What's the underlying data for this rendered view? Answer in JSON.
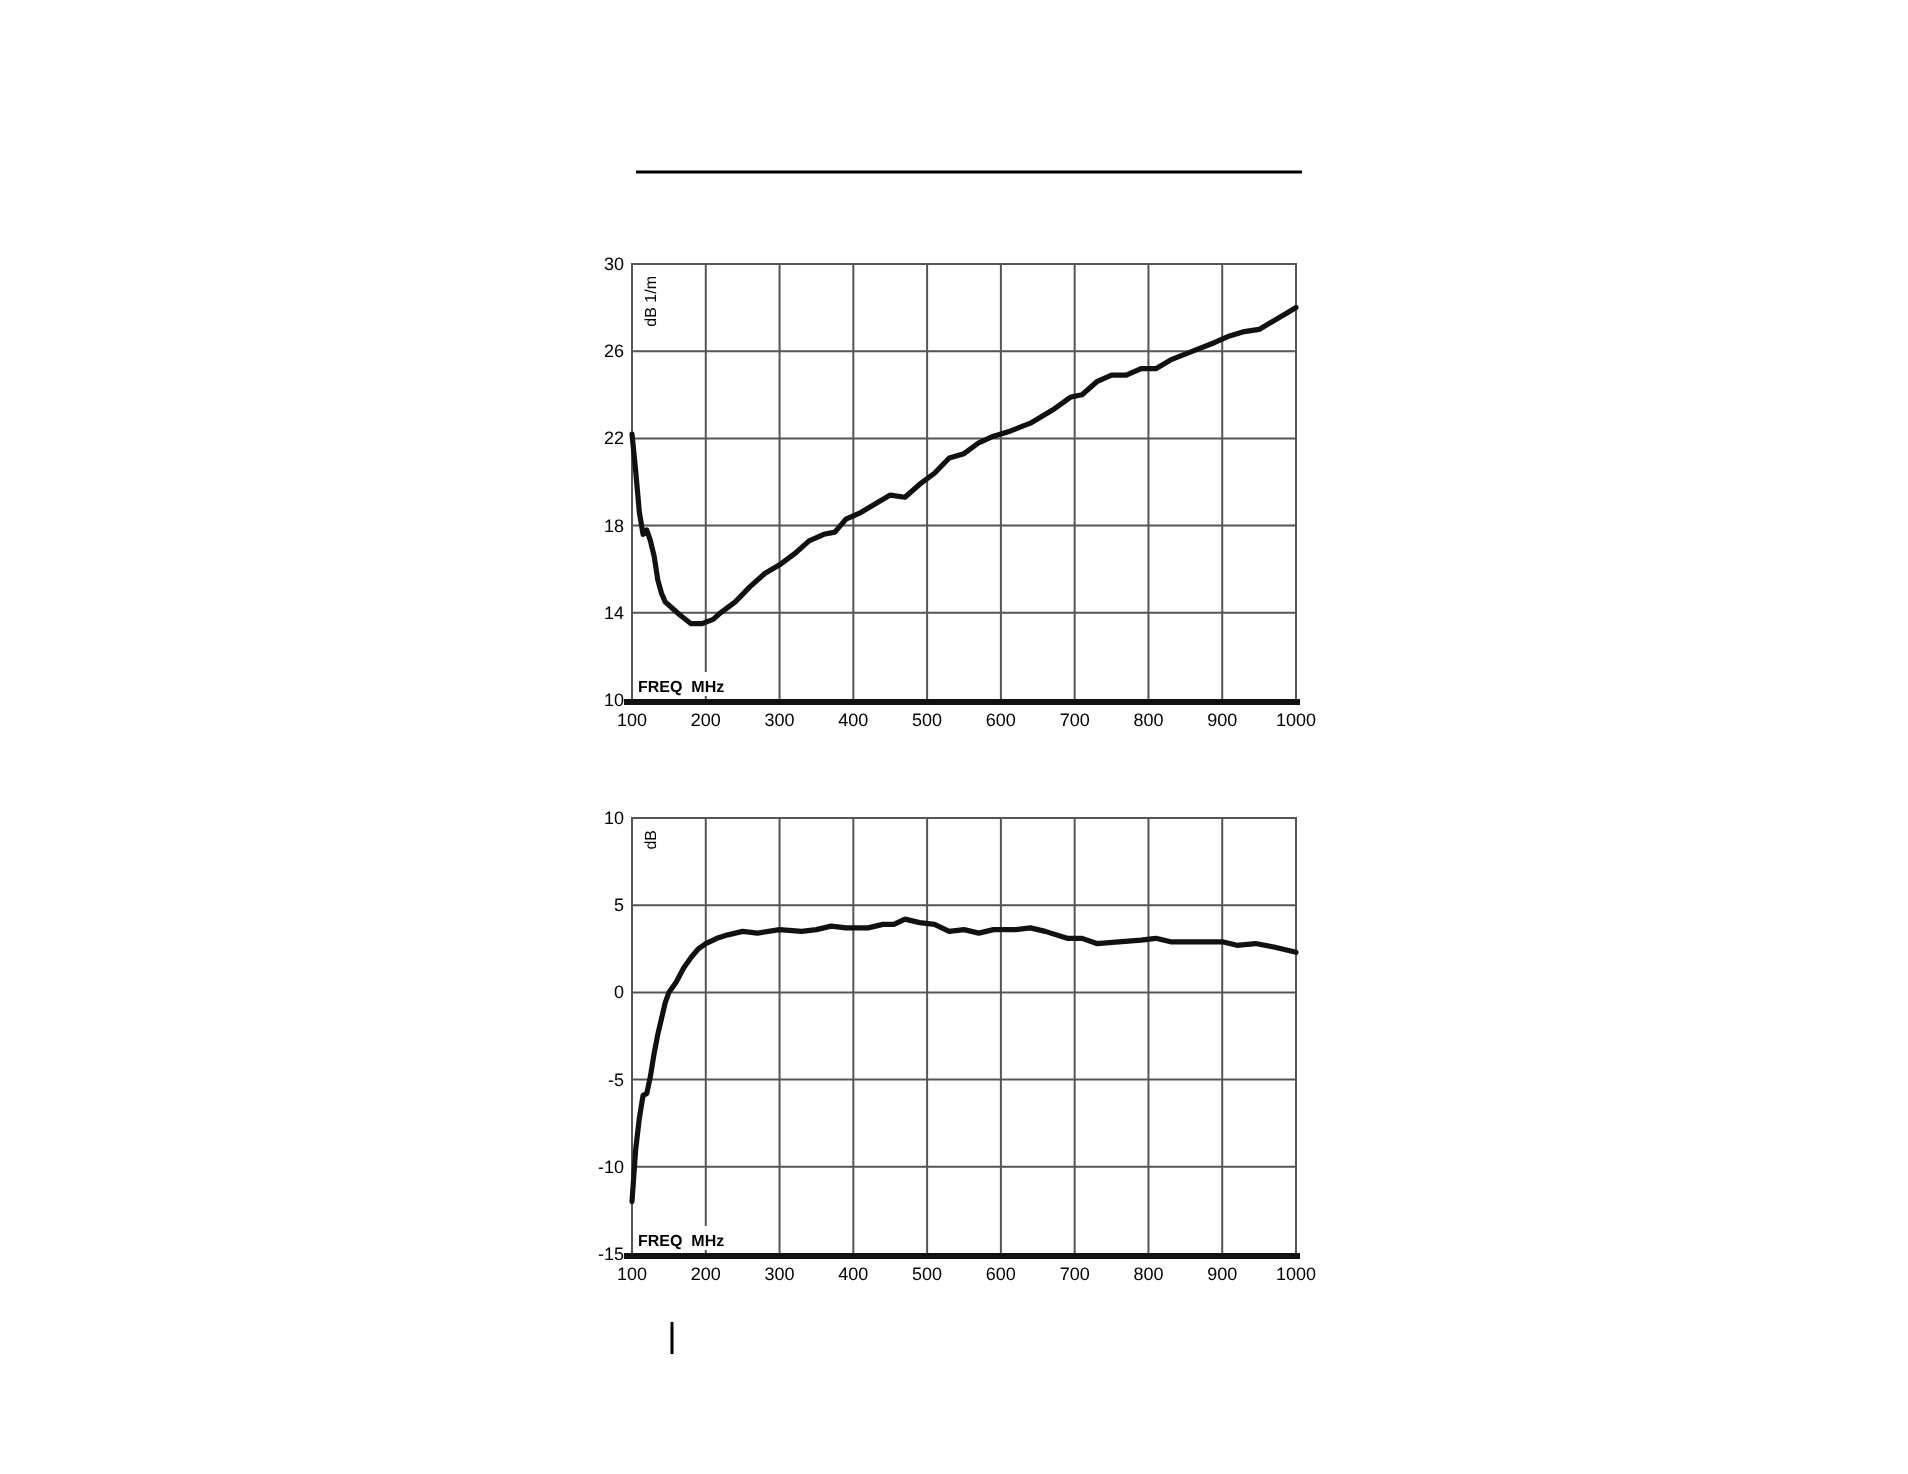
{
  "chart_data": [
    {
      "type": "line",
      "xlabel": "FREQ  MHz",
      "ylabel": "dB 1/m",
      "xlim": [
        100,
        1000
      ],
      "ylim": [
        10,
        30
      ],
      "xticks": [
        100,
        200,
        300,
        400,
        500,
        600,
        700,
        800,
        900,
        1000
      ],
      "yticks": [
        10,
        14,
        18,
        22,
        26,
        30
      ],
      "grid": true,
      "marker": "none",
      "line_style": "solid",
      "series": [
        {
          "color": "#111111",
          "x": [
            100,
            105,
            110,
            115,
            120,
            125,
            130,
            135,
            140,
            145,
            155,
            165,
            180,
            195,
            210,
            220,
            240,
            260,
            280,
            300,
            320,
            340,
            360,
            375,
            390,
            410,
            430,
            450,
            470,
            490,
            510,
            530,
            550,
            570,
            590,
            610,
            640,
            670,
            695,
            710,
            730,
            750,
            770,
            790,
            810,
            830,
            860,
            890,
            910,
            930,
            950,
            970,
            990,
            1000
          ],
          "values": [
            22.2,
            20.5,
            18.6,
            17.6,
            17.8,
            17.3,
            16.6,
            15.5,
            14.9,
            14.5,
            14.2,
            13.9,
            13.5,
            13.5,
            13.7,
            14.0,
            14.5,
            15.2,
            15.8,
            16.2,
            16.7,
            17.3,
            17.6,
            17.7,
            18.3,
            18.6,
            19.0,
            19.4,
            19.3,
            19.9,
            20.4,
            21.1,
            21.3,
            21.8,
            22.1,
            22.3,
            22.7,
            23.3,
            23.9,
            24.0,
            24.6,
            24.9,
            24.9,
            25.2,
            25.2,
            25.6,
            26.0,
            26.4,
            26.7,
            26.9,
            27.0,
            27.4,
            27.8,
            28.0
          ]
        }
      ]
    },
    {
      "type": "line",
      "xlabel": "FREQ  MHz",
      "ylabel": "dB",
      "xlim": [
        100,
        1000
      ],
      "ylim": [
        -15,
        10
      ],
      "xticks": [
        100,
        200,
        300,
        400,
        500,
        600,
        700,
        800,
        900,
        1000
      ],
      "yticks": [
        -15,
        -10,
        -5,
        0,
        5,
        10
      ],
      "grid": true,
      "marker": "none",
      "line_style": "solid",
      "series": [
        {
          "color": "#111111",
          "x": [
            100,
            105,
            110,
            115,
            120,
            125,
            130,
            135,
            140,
            145,
            150,
            160,
            170,
            180,
            190,
            200,
            215,
            230,
            250,
            270,
            300,
            330,
            350,
            370,
            390,
            420,
            440,
            455,
            470,
            490,
            510,
            530,
            550,
            570,
            590,
            620,
            640,
            660,
            690,
            710,
            730,
            760,
            790,
            810,
            830,
            860,
            900,
            920,
            945,
            970,
            990,
            1000
          ],
          "values": [
            -12,
            -9,
            -7.2,
            -5.9,
            -5.8,
            -4.8,
            -3.5,
            -2.4,
            -1.5,
            -0.6,
            0.0,
            0.6,
            1.4,
            2.0,
            2.5,
            2.8,
            3.1,
            3.3,
            3.5,
            3.4,
            3.6,
            3.5,
            3.6,
            3.8,
            3.7,
            3.7,
            3.9,
            3.9,
            4.2,
            4.0,
            3.9,
            3.5,
            3.6,
            3.4,
            3.6,
            3.6,
            3.7,
            3.5,
            3.1,
            3.1,
            2.8,
            2.9,
            3.0,
            3.1,
            2.9,
            2.9,
            2.9,
            2.7,
            2.8,
            2.6,
            2.4,
            2.3
          ]
        }
      ]
    }
  ]
}
